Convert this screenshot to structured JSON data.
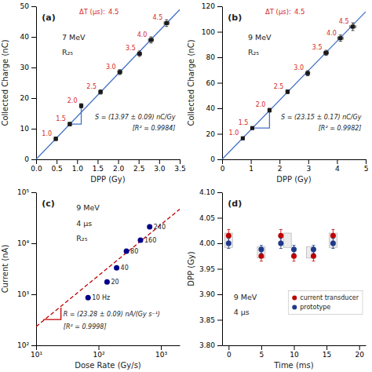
{
  "chart_data": [
    {
      "type": "scatter",
      "title": "(a)",
      "x_label": "DPP (Gy)",
      "y_label": "Collected Charge (nC)",
      "xlim": [
        0,
        3.5
      ],
      "ylim": [
        0,
        50
      ],
      "xticks": [
        {
          "value": 0,
          "label": "0.0"
        },
        0.5,
        {
          "value": 1,
          "label": "1.0"
        },
        1.5,
        {
          "value": 2,
          "label": "2.0"
        },
        2.5,
        {
          "value": 3,
          "label": "3.0"
        },
        3.5
      ],
      "yticks": [
        0,
        10,
        20,
        30,
        40,
        50
      ],
      "grid": false,
      "series": [
        {
          "type": "line",
          "color": "#4472C4",
          "x": [
            0,
            3.5
          ],
          "values": [
            0,
            48.895
          ]
        },
        {
          "type": "line",
          "color": "#4472C4",
          "x": [
            0.82,
            1.1,
            1.1
          ],
          "values": [
            11.5,
            11.5,
            17.5
          ]
        },
        {
          "type": "scatter",
          "color": "#1a1a1a",
          "marker": "square",
          "x": [
            0.48,
            0.82,
            1.1,
            1.57,
            2.04,
            2.52,
            2.8,
            3.18
          ],
          "values": [
            6.7,
            11.5,
            17.5,
            22.0,
            28.5,
            34.5,
            39.0,
            44.5
          ],
          "xerr": [
            0.04,
            0.04,
            0.04,
            0.04,
            0.05,
            0.05,
            0.06,
            0.06
          ],
          "yerr": [
            0.6,
            0.6,
            0.7,
            0.7,
            0.8,
            0.9,
            1.0,
            1.1
          ],
          "point_labels": [
            "1.0",
            "1.5",
            "2.0",
            "2.5",
            "3.0",
            "3.5",
            "4.0",
            "4.5"
          ]
        }
      ],
      "annotations": [
        "ΔT (μs):",
        "4.5",
        "7 MeV",
        "R₂₅",
        "S = (13.97 ± 0.09) nC/Gy",
        "[R² = 0.9984]"
      ]
    },
    {
      "type": "scatter",
      "title": "(b)",
      "x_label": "DPP (Gy)",
      "y_label": "Collected Charge (nC)",
      "xlim": [
        0,
        5
      ],
      "ylim": [
        0,
        120
      ],
      "xticks": [
        0,
        1,
        2,
        3,
        4,
        5
      ],
      "yticks": [
        0,
        20,
        40,
        60,
        80,
        100,
        120
      ],
      "grid": false,
      "series": [
        {
          "type": "line",
          "color": "#4472C4",
          "x": [
            0,
            5
          ],
          "values": [
            0,
            115.75
          ]
        },
        {
          "type": "line",
          "color": "#4472C4",
          "x": [
            1.05,
            1.65,
            1.65
          ],
          "values": [
            24.5,
            24.5,
            38.5
          ]
        },
        {
          "type": "scatter",
          "color": "#1a1a1a",
          "marker": "square",
          "x": [
            0.72,
            1.05,
            1.65,
            2.28,
            2.98,
            3.62,
            4.12,
            4.55
          ],
          "values": [
            16.5,
            24.5,
            38.5,
            53.0,
            67.5,
            83.5,
            95.0,
            104.0
          ],
          "xerr": [
            0.04,
            0.04,
            0.05,
            0.06,
            0.07,
            0.08,
            0.09,
            0.1
          ],
          "yerr": [
            1.0,
            1.0,
            1.5,
            1.5,
            2.0,
            2.0,
            2.5,
            3.0
          ],
          "point_labels": [
            "1.0",
            "1.5",
            "2.0",
            "2.5",
            "3.0",
            "3.5",
            "4.0",
            "4.5"
          ]
        }
      ],
      "annotations": [
        "ΔT (μs):",
        "4.5",
        "9 MeV",
        "R₂₅",
        "S = (23.15 ± 0.17) nC/Gy",
        "[R² = 0.9982]"
      ]
    },
    {
      "type": "scatter",
      "title": "(c)",
      "x_label": "Dose Rate (Gy/s)",
      "y_label": "Current (nA)",
      "log": true,
      "xlim": [
        10,
        2000
      ],
      "ylim": [
        100,
        100000
      ],
      "xticks": [
        {
          "value": 10,
          "label": "10¹"
        },
        {
          "value": 100,
          "label": "10²"
        },
        {
          "value": 1000,
          "label": "10³"
        }
      ],
      "yticks": [
        {
          "value": 100,
          "label": "10²"
        },
        {
          "value": 1000,
          "label": "10³"
        },
        {
          "value": 10000,
          "label": "10⁴"
        },
        {
          "value": 100000,
          "label": "10⁵"
        }
      ],
      "grid": false,
      "series": [
        {
          "type": "line",
          "color": "#C00000",
          "line_style": "dashed",
          "x": [
            10,
            2000
          ],
          "values": [
            232.8,
            46560
          ]
        },
        {
          "type": "line",
          "color": "#C00000",
          "x": [
            13,
            25,
            25
          ],
          "values": [
            320,
            320,
            550
          ]
        },
        {
          "type": "scatter",
          "color": "#00008B",
          "marker": "circle",
          "x": [
            68,
            137,
            195,
            280,
            470,
            660
          ],
          "values": [
            860,
            1750,
            3300,
            7000,
            11500,
            21000
          ],
          "point_labels": [
            "10 Hz",
            "20",
            "40",
            "80",
            "160",
            "240"
          ]
        }
      ],
      "annotations": [
        "9 MeV",
        "4 μs",
        "R₂₅",
        "R = (23.28 ± 0.09) nA/(Gy s⁻¹)",
        "[R² = 0.9998]"
      ]
    },
    {
      "type": "scatter",
      "title": "(d)",
      "x_label": "Time (ms)",
      "y_label": "DPP (Gy)",
      "xlim": [
        -1,
        21
      ],
      "ylim": [
        3.8,
        4.1
      ],
      "xticks": [
        0,
        5,
        10,
        15,
        20
      ],
      "yticks": [
        {
          "value": 3.8,
          "label": "3.80"
        },
        3.85,
        {
          "value": 3.9,
          "label": "3.90"
        },
        3.95,
        {
          "value": 4,
          "label": "4.00"
        },
        4.05,
        {
          "value": 4.1,
          "label": "4.10"
        }
      ],
      "grid": false,
      "legend": "right",
      "boxes": [
        {
          "x": 0,
          "y": 4.006,
          "width": 1.2,
          "height": 0.028
        },
        {
          "x": 5,
          "y": 3.982,
          "width": 1.2,
          "height": 0.022
        },
        {
          "x": 9,
          "y": 4.006,
          "width": 1.2,
          "height": 0.028
        },
        {
          "x": 12.5,
          "y": 3.982,
          "width": 1.2,
          "height": 0.022
        },
        {
          "x": 16,
          "y": 4.006,
          "width": 1.2,
          "height": 0.028
        }
      ],
      "series": [
        {
          "name": "current transducer",
          "color": "#C00000",
          "marker": "circle",
          "x": [
            0,
            5,
            8,
            10,
            13,
            16
          ],
          "values": [
            4.015,
            3.975,
            4.015,
            3.975,
            3.975,
            4.015
          ],
          "yerr": [
            0.012,
            0.01,
            0.012,
            0.01,
            0.01,
            0.012
          ]
        },
        {
          "name": "prototype",
          "color": "#1E3A8A",
          "marker": "circle",
          "x": [
            0,
            5,
            8,
            10,
            13,
            16
          ],
          "values": [
            4.0,
            3.988,
            4.0,
            3.988,
            3.988,
            4.0
          ],
          "yerr": [
            0.01,
            0.008,
            0.01,
            0.008,
            0.008,
            0.01
          ]
        }
      ],
      "annotations": [
        "9 MeV",
        "4 μs"
      ]
    }
  ]
}
